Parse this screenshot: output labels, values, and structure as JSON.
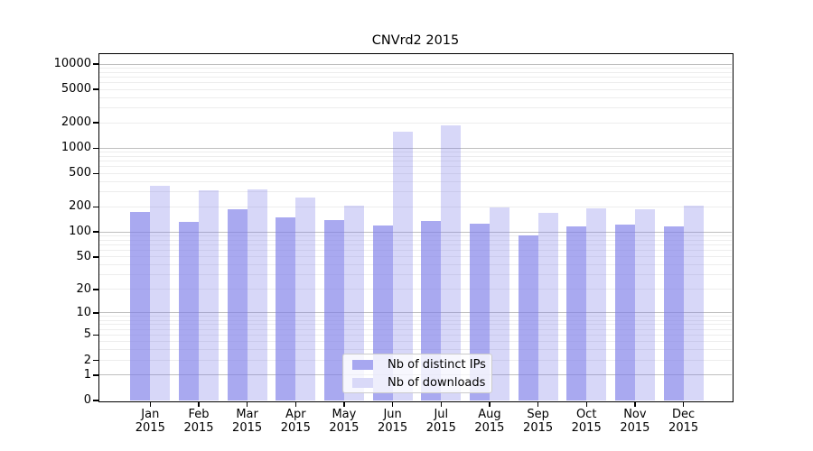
{
  "chart_data": {
    "type": "bar",
    "title": "CNVrd2 2015",
    "categories": [
      "Jan",
      "Feb",
      "Mar",
      "Apr",
      "May",
      "Jun",
      "Jul",
      "Aug",
      "Sep",
      "Oct",
      "Nov",
      "Dec"
    ],
    "x_sublabel": "2015",
    "series": [
      {
        "name": "Nb of distinct IPs",
        "color": "rgba(123,123,232,0.65)",
        "legend_color": "#a7a7f0",
        "values": [
          172,
          131,
          189,
          150,
          139,
          120,
          137,
          125,
          91,
          116,
          123,
          118
        ]
      },
      {
        "name": "Nb of downloads",
        "color": "rgba(123,123,232,0.30)",
        "legend_color": "#d9d9f8",
        "values": [
          353,
          313,
          319,
          257,
          207,
          1580,
          1865,
          195,
          170,
          194,
          189,
          206
        ]
      }
    ],
    "y_ticks": [
      0,
      1,
      2,
      5,
      10,
      20,
      50,
      100,
      200,
      500,
      1000,
      2000,
      5000,
      10000
    ],
    "scale": "log1p",
    "ylim": [
      0,
      12000
    ],
    "grid": "horizontal, minor log decades, majors at powers of 10",
    "grid_major_color": "#bfbfbf",
    "grid_minor_color": "#ededed",
    "axis_color": "#000000",
    "legend_position": "inside-bottom-center"
  }
}
